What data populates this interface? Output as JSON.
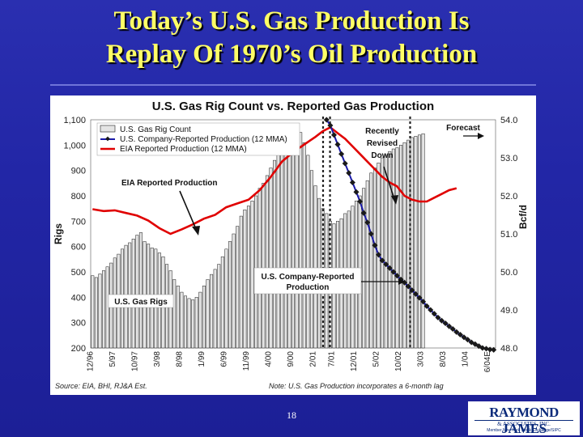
{
  "slide": {
    "title_line1": "Today’s U.S. Gas Production Is",
    "title_line2": "Replay Of 1970’s Oil Production",
    "page_number": "18",
    "logo_text": "RAYMOND JAMES",
    "logo_sub": "& ASSOCIATES, INC.",
    "logo_tagline": "Member New York Stock Exchange/SIPC"
  },
  "chart_data": {
    "type": "bar",
    "title": "U.S. Gas Rig Count vs. Reported Gas Production",
    "ylabel": "Rigs",
    "y2label": "Bcf/d",
    "ylim": [
      200,
      1100
    ],
    "y2lim": [
      48.0,
      54.0
    ],
    "y_ticks": [
      "200",
      "300",
      "400",
      "500",
      "600",
      "700",
      "800",
      "900",
      "1,000",
      "1,100"
    ],
    "y2_ticks": [
      "48.0",
      "49.0",
      "50.0",
      "51.0",
      "52.0",
      "53.0",
      "54.0"
    ],
    "x_ticks": [
      "12/96",
      "5/97",
      "10/97",
      "3/98",
      "8/98",
      "1/99",
      "6/99",
      "11/99",
      "4/00",
      "9/00",
      "2/01",
      "7/01",
      "12/01",
      "5/02",
      "10/02",
      "3/03",
      "8/03",
      "1/04",
      "6/04E"
    ],
    "legend": {
      "placement": "top-left",
      "items": [
        "U.S. Gas Rig Count",
        "U.S. Company-Reported Production (12 MMA)",
        "EIA Reported Production (12 MMA)"
      ]
    },
    "colors": {
      "bars": "#e4e4e4",
      "bar_stroke": "#1a1a1a",
      "eia": "#e00000",
      "company": "#1a1aa8",
      "markers": "#1a1a1a"
    },
    "annotations": {
      "forecast": "Forecast",
      "revised": [
        "Recently",
        "Revised",
        "Down"
      ],
      "eia": "EIA Reported Production",
      "company": [
        "U.S. Company-Reported",
        "Production"
      ],
      "rigs": "U.S. Gas Rigs",
      "source": "Source: EIA, BHI, RJ&A Est.",
      "note": "Note: U.S. Gas Production incorporates a 6-month lag"
    },
    "rig_count": [
      485,
      478,
      492,
      505,
      520,
      535,
      555,
      570,
      590,
      605,
      615,
      630,
      645,
      655,
      620,
      610,
      595,
      590,
      575,
      560,
      530,
      505,
      470,
      445,
      420,
      405,
      395,
      390,
      400,
      420,
      445,
      470,
      490,
      510,
      530,
      560,
      590,
      620,
      650,
      680,
      720,
      745,
      760,
      780,
      800,
      830,
      850,
      880,
      910,
      940,
      970,
      990,
      1010,
      1040,
      1060,
      1065,
      1050,
      1010,
      960,
      900,
      840,
      790,
      750,
      730,
      700,
      690,
      700,
      710,
      730,
      740,
      760,
      780,
      800,
      830,
      860,
      890,
      910,
      930,
      950,
      960,
      975,
      985,
      990,
      1000,
      1010,
      1020,
      1030,
      1035,
      1040,
      1045
    ],
    "eia_production": {
      "x": [
        0,
        3,
        6,
        9,
        12,
        15,
        18,
        21,
        24,
        27,
        30,
        33,
        36,
        39,
        42,
        45,
        48,
        51,
        54,
        57,
        60,
        62,
        64,
        66,
        68,
        70,
        72,
        74,
        76,
        78,
        80,
        82,
        84,
        86,
        88,
        90,
        92,
        94,
        96,
        98
      ],
      "y": [
        51.65,
        51.6,
        51.62,
        51.55,
        51.48,
        51.35,
        51.15,
        51.0,
        51.12,
        51.25,
        51.4,
        51.5,
        51.7,
        51.8,
        51.9,
        52.15,
        52.5,
        52.9,
        53.15,
        53.35,
        53.55,
        53.7,
        53.8,
        53.65,
        53.5,
        53.3,
        53.1,
        52.9,
        52.7,
        52.5,
        52.35,
        52.25,
        52.0,
        51.9,
        51.85,
        51.85,
        51.95,
        52.05,
        52.15,
        52.2
      ]
    },
    "company_production": {
      "x": [
        63,
        64,
        65,
        66,
        67,
        68,
        69,
        70,
        71,
        72,
        73,
        74,
        75,
        76,
        77,
        78,
        79,
        80,
        81,
        82,
        83,
        84,
        85,
        86,
        87,
        88,
        89,
        90,
        91,
        92,
        93,
        94,
        95,
        96,
        97,
        98,
        99,
        100,
        101,
        102,
        103,
        104,
        105,
        106,
        107,
        108
      ],
      "y": [
        54.0,
        53.85,
        53.6,
        53.35,
        53.1,
        52.85,
        52.6,
        52.35,
        52.1,
        51.85,
        51.55,
        51.3,
        51.0,
        50.7,
        50.45,
        50.3,
        50.2,
        50.1,
        50.0,
        49.9,
        49.8,
        49.72,
        49.62,
        49.52,
        49.42,
        49.32,
        49.22,
        49.1,
        49.0,
        48.9,
        48.8,
        48.72,
        48.65,
        48.57,
        48.5,
        48.42,
        48.35,
        48.28,
        48.22,
        48.15,
        48.1,
        48.05,
        48.0,
        47.98,
        47.96,
        47.95
      ]
    }
  }
}
